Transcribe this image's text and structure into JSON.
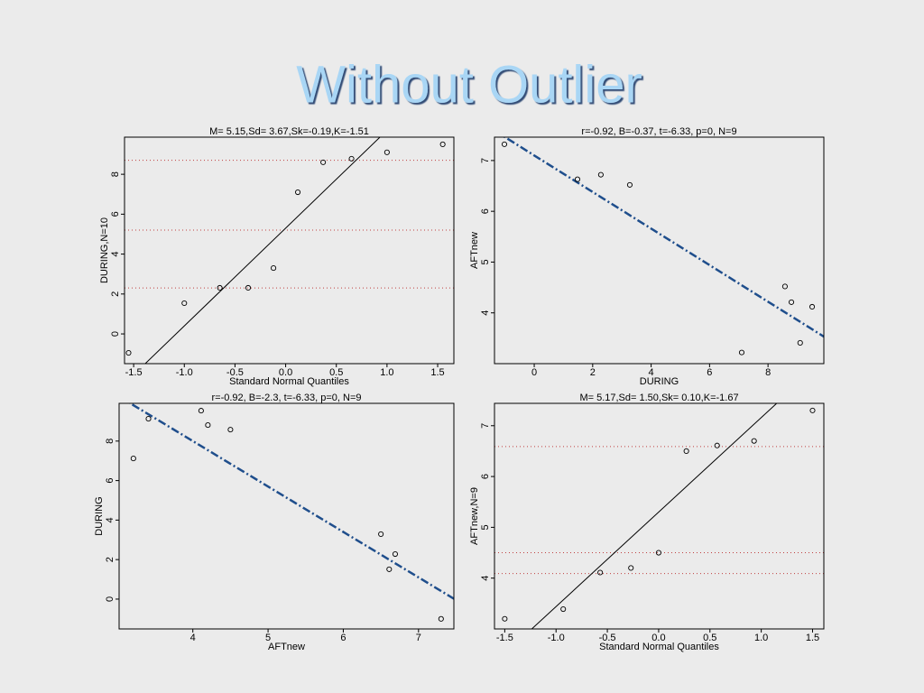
{
  "slide_title": "Without Outlier",
  "chart_data": [
    {
      "type": "scatter",
      "title": "M= 5.15,Sd= 3.67,Sk=-0.19,K=-1.51",
      "x_label": "Standard Normal Quantiles",
      "y_label": "DURING,N=10",
      "x": [
        -1.55,
        -1.0,
        -0.65,
        -0.37,
        -0.12,
        0.12,
        0.37,
        0.65,
        1.0,
        1.55
      ],
      "values": [
        -0.95,
        1.54,
        2.31,
        2.31,
        3.3,
        7.1,
        8.6,
        8.78,
        9.1,
        9.5
      ],
      "fit": {
        "intercept": 5.3,
        "slope": 4.9
      },
      "line_style": "solid",
      "line_color": "#000000",
      "hlines": [
        2.3,
        5.2,
        8.7
      ],
      "hline_color": "#c04040",
      "point_color": "#000000",
      "xlim": [
        -1.59,
        1.66
      ],
      "ylim": [
        -1.49,
        9.86
      ],
      "xticks": [
        -1.5,
        {
          "value": -1,
          "label": "-1.0"
        },
        -0.5,
        {
          "value": 0,
          "label": "0.0"
        },
        0.5,
        {
          "value": 1,
          "label": "1.0"
        },
        1.5
      ],
      "yticks": [
        0,
        2,
        4,
        6,
        8
      ]
    },
    {
      "type": "scatter",
      "title": "r=-0.92, B=-0.37, t=-6.33, p=0, N=9",
      "x_label": "DURING",
      "y_label": "AFTnew",
      "x": [
        -1.02,
        1.48,
        2.28,
        3.27,
        7.1,
        8.58,
        8.8,
        9.1,
        9.51
      ],
      "values": [
        7.32,
        6.63,
        6.72,
        6.52,
        3.22,
        4.52,
        4.21,
        3.41,
        4.12
      ],
      "fit": {
        "intercept": 7.1,
        "slope": -0.36
      },
      "line_style": "dashdot",
      "line_color": "#1f4e8c",
      "point_color": "#000000",
      "xlim": [
        -1.36,
        9.91
      ],
      "ylim": [
        3.0,
        7.46
      ],
      "xticks": [
        0,
        2,
        4,
        6,
        8
      ],
      "yticks": [
        4,
        5,
        6,
        7
      ]
    },
    {
      "type": "scatter",
      "title": "r=-0.92, B=-2.3, t=-6.33, p=0, N=9",
      "x_label": "AFTnew",
      "y_label": "DURING",
      "x": [
        3.21,
        3.41,
        4.11,
        4.2,
        4.5,
        6.5,
        6.69,
        6.61,
        7.3
      ],
      "values": [
        7.12,
        9.13,
        9.54,
        8.81,
        8.58,
        3.29,
        2.28,
        1.51,
        -1.0
      ],
      "fit": {
        "intercept": 17.2,
        "slope": -2.3
      },
      "line_style": "dashdot",
      "line_color": "#1f4e8c",
      "point_color": "#000000",
      "xlim": [
        3.02,
        7.47
      ],
      "ylim": [
        -1.51,
        9.91
      ],
      "xticks": [
        4,
        5,
        6,
        7
      ],
      "yticks": [
        0,
        2,
        4,
        6,
        8
      ]
    },
    {
      "type": "scatter",
      "title": "M= 5.17,Sd= 1.50,Sk= 0.10,K=-1.67",
      "x_label": "Standard Normal Quantiles",
      "y_label": "AFTnew,N=9",
      "x": [
        -1.5,
        -0.93,
        -0.57,
        -0.27,
        0,
        0.27,
        0.57,
        0.93,
        1.5
      ],
      "values": [
        3.2,
        3.39,
        4.11,
        4.2,
        4.5,
        6.5,
        6.61,
        6.7,
        7.3
      ],
      "fit": {
        "intercept": 5.3,
        "slope": 1.86
      },
      "line_style": "solid",
      "line_color": "#000000",
      "hlines": [
        4.09,
        4.5,
        6.59
      ],
      "hline_color": "#c04040",
      "point_color": "#000000",
      "xlim": [
        -1.6,
        1.61
      ],
      "ylim": [
        3.0,
        7.44
      ],
      "xticks": [
        -1.5,
        {
          "value": -1,
          "label": "-1.0"
        },
        -0.5,
        {
          "value": 0,
          "label": "0.0"
        },
        0.5,
        {
          "value": 1,
          "label": "1.0"
        },
        1.5
      ],
      "yticks": [
        4,
        5,
        6,
        7
      ]
    }
  ]
}
